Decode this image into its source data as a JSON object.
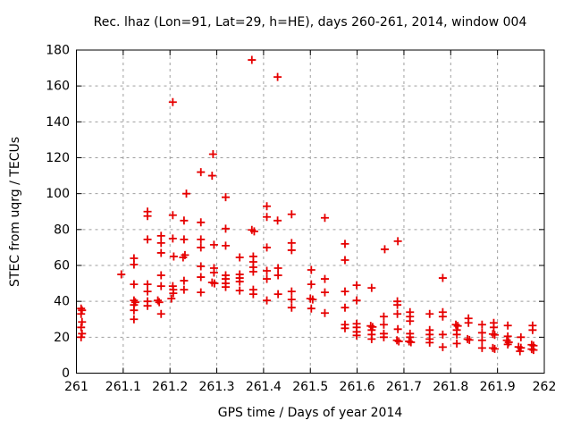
{
  "title": "Rec. lhaz (Lon=91, Lat=29, h=HE), days 260-261, 2014, window 004",
  "axes": {
    "x": {
      "label": "GPS time / Days of year 2014",
      "ticks": [
        "261",
        "261.1",
        "261.2",
        "261.3",
        "261.4",
        "261.5",
        "261.6",
        "261.7",
        "261.8",
        "261.9",
        "262"
      ],
      "tick_values": [
        261,
        261.1,
        261.2,
        261.3,
        261.4,
        261.5,
        261.6,
        261.7,
        261.8,
        261.9,
        262
      ]
    },
    "y": {
      "label": "STEC from uqrg / TECUs",
      "ticks": [
        "0",
        "20",
        "40",
        "60",
        "80",
        "100",
        "120",
        "140",
        "160",
        "180"
      ],
      "tick_values": [
        0,
        20,
        40,
        60,
        80,
        100,
        120,
        140,
        160,
        180
      ]
    }
  },
  "chart_data": {
    "type": "scatter",
    "title": "Rec. lhaz (Lon=91, Lat=29, h=HE), days 260-261, 2014, window 004",
    "xlabel": "GPS time / Days of year 2014",
    "ylabel": "STEC from uqrg / TECUs",
    "xlim": [
      261,
      262
    ],
    "ylim": [
      0,
      180
    ],
    "grid": true,
    "grid_color": "#9e9e9e",
    "marker": {
      "symbol": "plus",
      "color": "#e60000",
      "size": 9
    },
    "series": [
      {
        "name": "STEC from uqrg",
        "points": [
          [
            261.01,
            36
          ],
          [
            261.012,
            35
          ],
          [
            261.01,
            33
          ],
          [
            261.012,
            28.5
          ],
          [
            261.01,
            25.5
          ],
          [
            261.012,
            22
          ],
          [
            261.01,
            20
          ],
          [
            261.096,
            55
          ],
          [
            261.123,
            64
          ],
          [
            261.123,
            60.5
          ],
          [
            261.123,
            49.5
          ],
          [
            261.123,
            40.5
          ],
          [
            261.126,
            39.5
          ],
          [
            261.123,
            38
          ],
          [
            261.123,
            35
          ],
          [
            261.123,
            30
          ],
          [
            261.152,
            90
          ],
          [
            261.152,
            87.5
          ],
          [
            261.152,
            74.5
          ],
          [
            261.152,
            49.5
          ],
          [
            261.152,
            45.5
          ],
          [
            261.152,
            40
          ],
          [
            261.152,
            37.5
          ],
          [
            261.174,
            40.5
          ],
          [
            261.177,
            39.5
          ],
          [
            261.181,
            76.5
          ],
          [
            261.181,
            72.5
          ],
          [
            261.181,
            67
          ],
          [
            261.181,
            54.5
          ],
          [
            261.181,
            48.5
          ],
          [
            261.181,
            33
          ],
          [
            261.206,
            151
          ],
          [
            261.206,
            88
          ],
          [
            261.206,
            75
          ],
          [
            261.208,
            65
          ],
          [
            261.206,
            48.5
          ],
          [
            261.207,
            46.5
          ],
          [
            261.207,
            44.5
          ],
          [
            261.203,
            41.5
          ],
          [
            261.235,
            100
          ],
          [
            261.23,
            85
          ],
          [
            261.23,
            74.5
          ],
          [
            261.232,
            65.8
          ],
          [
            261.228,
            64.5
          ],
          [
            261.23,
            51.5
          ],
          [
            261.23,
            46.5
          ],
          [
            261.266,
            112
          ],
          [
            261.266,
            84
          ],
          [
            261.266,
            74.5
          ],
          [
            261.266,
            70
          ],
          [
            261.266,
            59.5
          ],
          [
            261.266,
            53.5
          ],
          [
            261.266,
            45
          ],
          [
            261.292,
            122
          ],
          [
            261.29,
            110
          ],
          [
            261.294,
            71.5
          ],
          [
            261.294,
            58.5
          ],
          [
            261.294,
            56
          ],
          [
            261.29,
            50.5
          ],
          [
            261.295,
            50
          ],
          [
            261.319,
            98
          ],
          [
            261.319,
            80.5
          ],
          [
            261.319,
            71
          ],
          [
            261.319,
            54.5
          ],
          [
            261.319,
            52.5
          ],
          [
            261.319,
            50
          ],
          [
            261.319,
            48
          ],
          [
            261.349,
            64.5
          ],
          [
            261.349,
            55
          ],
          [
            261.349,
            53
          ],
          [
            261.349,
            51
          ],
          [
            261.349,
            46
          ],
          [
            261.375,
            174.5
          ],
          [
            261.375,
            79.8
          ],
          [
            261.38,
            79
          ],
          [
            261.378,
            65
          ],
          [
            261.378,
            62
          ],
          [
            261.378,
            59
          ],
          [
            261.378,
            56.5
          ],
          [
            261.378,
            46.5
          ],
          [
            261.378,
            44
          ],
          [
            261.407,
            93
          ],
          [
            261.407,
            87
          ],
          [
            261.407,
            70
          ],
          [
            261.407,
            57
          ],
          [
            261.407,
            52.5
          ],
          [
            261.407,
            40.5
          ],
          [
            261.43,
            165
          ],
          [
            261.43,
            85
          ],
          [
            261.431,
            58.5
          ],
          [
            261.431,
            54.5
          ],
          [
            261.431,
            44
          ],
          [
            261.46,
            88.5
          ],
          [
            261.46,
            72.5
          ],
          [
            261.46,
            68.5
          ],
          [
            261.46,
            45.5
          ],
          [
            261.46,
            41
          ],
          [
            261.46,
            36.5
          ],
          [
            261.502,
            57.5
          ],
          [
            261.502,
            49.5
          ],
          [
            261.5,
            41.5
          ],
          [
            261.505,
            41
          ],
          [
            261.502,
            36
          ],
          [
            261.531,
            86.5
          ],
          [
            261.531,
            52.5
          ],
          [
            261.531,
            45
          ],
          [
            261.531,
            33.5
          ],
          [
            261.574,
            72
          ],
          [
            261.574,
            63
          ],
          [
            261.574,
            45.5
          ],
          [
            261.574,
            36.5
          ],
          [
            261.574,
            27
          ],
          [
            261.574,
            25
          ],
          [
            261.599,
            49
          ],
          [
            261.599,
            40.5
          ],
          [
            261.599,
            27.5
          ],
          [
            261.599,
            25.5
          ],
          [
            261.599,
            23
          ],
          [
            261.599,
            21
          ],
          [
            261.631,
            47.5
          ],
          [
            261.629,
            26.3
          ],
          [
            261.633,
            25.7
          ],
          [
            261.631,
            24
          ],
          [
            261.631,
            21.5
          ],
          [
            261.631,
            19
          ],
          [
            261.659,
            69
          ],
          [
            261.657,
            31.5
          ],
          [
            261.657,
            27
          ],
          [
            261.657,
            22
          ],
          [
            261.657,
            20
          ],
          [
            261.687,
            73.5
          ],
          [
            261.686,
            40
          ],
          [
            261.686,
            38
          ],
          [
            261.686,
            33
          ],
          [
            261.687,
            24.5
          ],
          [
            261.685,
            18.3
          ],
          [
            261.689,
            17.7
          ],
          [
            261.713,
            34
          ],
          [
            261.713,
            31.5
          ],
          [
            261.713,
            29
          ],
          [
            261.713,
            22
          ],
          [
            261.713,
            20
          ],
          [
            261.711,
            17.7
          ],
          [
            261.715,
            17.2
          ],
          [
            261.755,
            33
          ],
          [
            261.755,
            24
          ],
          [
            261.755,
            21.5
          ],
          [
            261.755,
            19
          ],
          [
            261.755,
            17
          ],
          [
            261.783,
            53
          ],
          [
            261.783,
            34
          ],
          [
            261.783,
            31.5
          ],
          [
            261.783,
            21.5
          ],
          [
            261.783,
            14.5
          ],
          [
            261.811,
            27
          ],
          [
            261.815,
            26.3
          ],
          [
            261.813,
            24
          ],
          [
            261.813,
            21.5
          ],
          [
            261.813,
            16.5
          ],
          [
            261.838,
            30.5
          ],
          [
            261.838,
            28
          ],
          [
            261.836,
            19
          ],
          [
            261.84,
            18.5
          ],
          [
            261.867,
            27
          ],
          [
            261.867,
            22.5
          ],
          [
            261.867,
            18.3
          ],
          [
            261.867,
            14
          ],
          [
            261.892,
            28
          ],
          [
            261.892,
            25.5
          ],
          [
            261.89,
            21.8
          ],
          [
            261.894,
            21.3
          ],
          [
            261.89,
            14
          ],
          [
            261.894,
            13.5
          ],
          [
            261.922,
            26.5
          ],
          [
            261.922,
            20.5
          ],
          [
            261.92,
            18.3
          ],
          [
            261.924,
            17.2
          ],
          [
            261.922,
            16
          ],
          [
            261.95,
            20
          ],
          [
            261.945,
            14.6
          ],
          [
            261.95,
            14.1
          ],
          [
            261.948,
            12.2
          ],
          [
            261.975,
            26.5
          ],
          [
            261.975,
            24
          ],
          [
            261.973,
            15.8
          ],
          [
            261.977,
            15.3
          ],
          [
            261.973,
            13.4
          ],
          [
            261.977,
            12.9
          ]
        ]
      }
    ]
  }
}
